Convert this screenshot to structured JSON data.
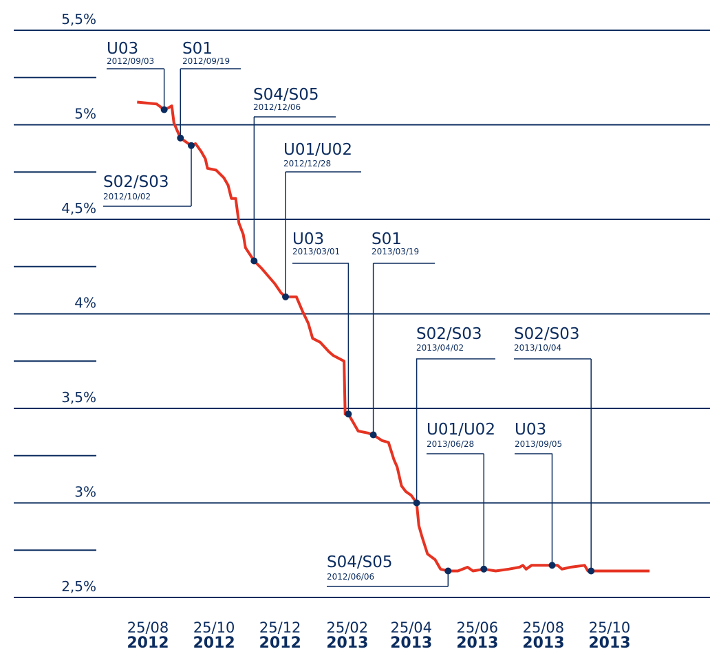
{
  "chart_data": {
    "type": "line",
    "xlim": [
      "2012-08-01",
      "2013-12-31"
    ],
    "xticks": [
      {
        "value": "2012-08-25",
        "label": "25/08",
        "sublabel": "2012"
      },
      {
        "value": "2012-10-25",
        "label": "25/10",
        "sublabel": "2012"
      },
      {
        "value": "2012-12-25",
        "label": "25/12",
        "sublabel": "2012"
      },
      {
        "value": "2013-02-25",
        "label": "25/02",
        "sublabel": "2013"
      },
      {
        "value": "2013-04-25",
        "label": "25/04",
        "sublabel": "2013"
      },
      {
        "value": "2013-06-25",
        "label": "25/06",
        "sublabel": "2013"
      },
      {
        "value": "2013-08-25",
        "label": "25/08",
        "sublabel": "2013"
      },
      {
        "value": "2013-10-25",
        "label": "25/10",
        "sublabel": "2013"
      }
    ],
    "ylim": [
      2.5,
      5.5
    ],
    "yticks": [
      {
        "value": 2.5,
        "label": "2,5%"
      },
      {
        "value": 3,
        "label": "3%"
      },
      {
        "value": 3.5,
        "label": "3,5%"
      },
      {
        "value": 4,
        "label": "4%"
      },
      {
        "value": 4.5,
        "label": "4,5%"
      },
      {
        "value": 5,
        "label": "5%"
      },
      {
        "value": 5.5,
        "label": "5,5%"
      }
    ],
    "minor_yticks": [
      2.75,
      3.25,
      3.75,
      4.25,
      4.75,
      5.25
    ],
    "grid": true,
    "series": [
      {
        "color": "#e63322",
        "x": [
          "2012-08-15",
          "2012-09-02",
          "2012-09-09",
          "2012-09-13",
          "2012-09-16",
          "2012-09-18",
          "2012-09-24",
          "2012-09-29",
          "2012-10-04",
          "2012-10-08",
          "2012-10-13",
          "2012-10-17",
          "2012-10-19",
          "2012-10-27",
          "2012-11-03",
          "2012-11-07",
          "2012-11-10",
          "2012-11-14",
          "2012-11-17",
          "2012-11-21",
          "2012-11-23",
          "2012-12-01",
          "2012-12-08",
          "2012-12-14",
          "2012-12-20",
          "2012-12-26",
          "2012-12-30",
          "2013-01-09",
          "2013-01-15",
          "2013-01-20",
          "2013-01-24",
          "2013-01-31",
          "2013-02-08",
          "2013-02-12",
          "2013-02-22",
          "2013-02-23",
          "2013-02-26",
          "2013-03-03",
          "2013-03-07",
          "2013-03-16",
          "2013-03-21",
          "2013-03-29",
          "2013-04-04",
          "2013-04-09",
          "2013-04-12",
          "2013-04-16",
          "2013-04-20",
          "2013-04-25",
          "2013-04-30",
          "2013-05-02",
          "2013-05-05",
          "2013-05-10",
          "2013-05-17",
          "2013-05-22",
          "2013-05-29",
          "2013-06-07",
          "2013-06-16",
          "2013-06-21",
          "2013-07-01",
          "2013-07-12",
          "2013-07-24",
          "2013-08-03",
          "2013-08-06",
          "2013-08-09",
          "2013-08-14",
          "2013-09-02",
          "2013-09-07",
          "2013-09-11",
          "2013-09-19",
          "2013-10-02",
          "2013-10-05",
          "2013-10-08",
          "2013-11-03",
          "2013-12-01"
        ],
        "values": [
          5.12,
          5.11,
          5.08,
          5.09,
          5.1,
          5.01,
          4.93,
          4.91,
          4.89,
          4.9,
          4.86,
          4.82,
          4.77,
          4.76,
          4.72,
          4.68,
          4.61,
          4.61,
          4.48,
          4.42,
          4.35,
          4.28,
          4.24,
          4.2,
          4.16,
          4.11,
          4.09,
          4.09,
          4.01,
          3.95,
          3.87,
          3.85,
          3.8,
          3.78,
          3.75,
          3.47,
          3.47,
          3.42,
          3.38,
          3.37,
          3.36,
          3.33,
          3.32,
          3.23,
          3.19,
          3.09,
          3.06,
          3.04,
          3.0,
          2.88,
          2.82,
          2.73,
          2.7,
          2.65,
          2.64,
          2.64,
          2.66,
          2.64,
          2.65,
          2.64,
          2.65,
          2.66,
          2.67,
          2.65,
          2.67,
          2.67,
          2.67,
          2.65,
          2.66,
          2.67,
          2.64,
          2.64,
          2.64,
          2.64
        ]
      }
    ],
    "annotations": [
      {
        "label": "U03",
        "date": "2012/09/03",
        "x": "2012-09-09",
        "y": 5.08
      },
      {
        "label": "S01",
        "date": "2012/09/19",
        "x": "2012-09-24",
        "y": 4.93
      },
      {
        "label": "S02/S03",
        "date": "2012/10/02",
        "x": "2012-10-04",
        "y": 4.89
      },
      {
        "label": "S04/S05",
        "date": "2012/12/06",
        "x": "2012-12-01",
        "y": 4.28
      },
      {
        "label": "U01/U02",
        "date": "2012/12/28",
        "x": "2012-12-30",
        "y": 4.09
      },
      {
        "label": "U03",
        "date": "2013/03/01",
        "x": "2013-02-26",
        "y": 3.47
      },
      {
        "label": "S01",
        "date": "2013/03/19",
        "x": "2013-03-21",
        "y": 3.36
      },
      {
        "label": "S02/S03",
        "date": "2013/04/02",
        "x": "2013-04-30",
        "y": 3.0
      },
      {
        "label": "U01/U02",
        "date": "2013/06/28",
        "x": "2013-07-01",
        "y": 2.65
      },
      {
        "label": "U03",
        "date": "2013/09/05",
        "x": "2013-09-02",
        "y": 2.67
      },
      {
        "label": "S02/S03",
        "date": "2013/10/04",
        "x": "2013-10-08",
        "y": 2.64
      },
      {
        "label": "S04/S05",
        "date": "2012/06/06",
        "x": "2013-05-29",
        "y": 2.64
      }
    ]
  }
}
